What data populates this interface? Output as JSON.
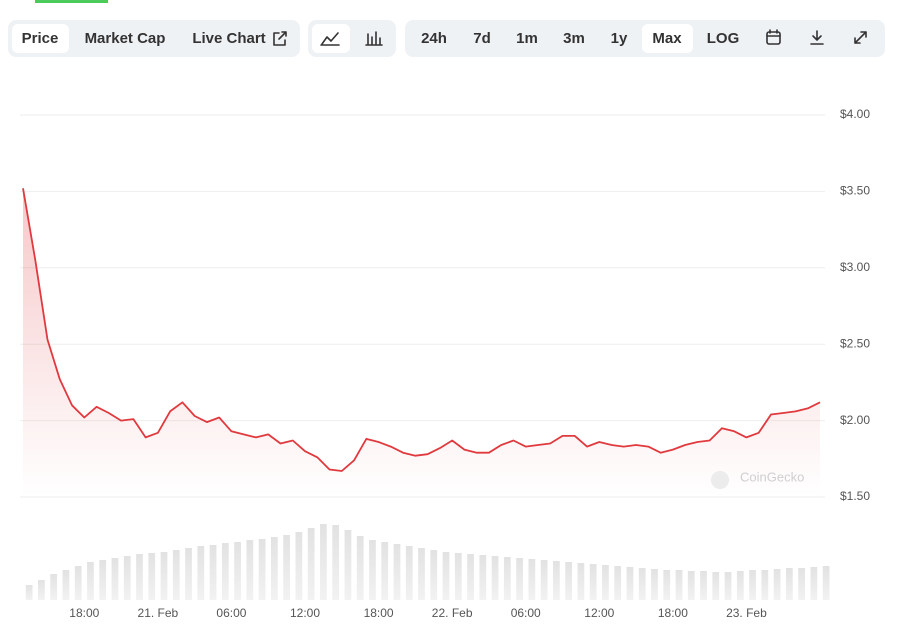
{
  "toolbar": {
    "tabs": [
      "Price",
      "Market Cap",
      "Live Chart"
    ],
    "ranges": [
      "24h",
      "7d",
      "1m",
      "3m",
      "1y",
      "Max"
    ],
    "scale": "LOG"
  },
  "chart_data": {
    "type": "line",
    "categories": [
      null,
      null,
      null,
      null,
      null,
      "18:00",
      null,
      null,
      null,
      null,
      null,
      "21. Feb",
      null,
      null,
      null,
      null,
      null,
      "06:00",
      null,
      null,
      null,
      null,
      null,
      "12:00",
      null,
      null,
      null,
      null,
      null,
      "18:00",
      null,
      null,
      null,
      null,
      null,
      "22. Feb",
      null,
      null,
      null,
      null,
      null,
      "06:00",
      null,
      null,
      null,
      null,
      null,
      "12:00",
      null,
      null,
      null,
      null,
      null,
      "18:00",
      null,
      null,
      null,
      null,
      null,
      "23. Feb",
      null,
      null,
      null,
      null,
      null,
      null
    ],
    "series": [
      {
        "name": "Price",
        "color": "#e0393e",
        "values": [
          3.52,
          3.05,
          2.53,
          2.27,
          2.1,
          2.02,
          2.09,
          2.05,
          2.0,
          2.01,
          1.89,
          1.92,
          2.06,
          2.12,
          2.03,
          1.99,
          2.02,
          1.93,
          1.91,
          1.89,
          1.91,
          1.85,
          1.87,
          1.8,
          1.76,
          1.68,
          1.67,
          1.74,
          1.88,
          1.86,
          1.83,
          1.79,
          1.77,
          1.78,
          1.82,
          1.87,
          1.81,
          1.79,
          1.79,
          1.84,
          1.87,
          1.83,
          1.84,
          1.85,
          1.9,
          1.9,
          1.83,
          1.86,
          1.84,
          1.83,
          1.84,
          1.83,
          1.79,
          1.81,
          1.84,
          1.86,
          1.87,
          1.95,
          1.93,
          1.89,
          1.92,
          2.04,
          2.05,
          2.06,
          2.08,
          2.12
        ]
      },
      {
        "name": "Volume",
        "color": "#e4e4e4",
        "axis": "y2",
        "values": [
          15,
          20,
          26,
          30,
          34,
          38,
          40,
          42,
          44,
          46,
          47,
          48,
          50,
          52,
          54,
          55,
          57,
          58,
          60,
          61,
          63,
          65,
          68,
          72,
          76,
          75,
          70,
          64,
          60,
          58,
          56,
          54,
          52,
          50,
          48,
          47,
          46,
          45,
          44,
          43,
          42,
          41,
          40,
          39,
          38,
          37,
          36,
          35,
          34,
          33,
          32,
          31,
          30,
          30,
          29,
          29,
          28,
          28,
          29,
          30,
          30,
          31,
          32,
          32,
          33,
          34
        ]
      }
    ],
    "ylim": [
      1.5,
      4.0
    ],
    "yticks": [
      {
        "value": 1.5,
        "label": "$1.50"
      },
      {
        "value": 2.0,
        "label": "$2.00"
      },
      {
        "value": 2.5,
        "label": "$2.50"
      },
      {
        "value": 3.0,
        "label": "$3.00"
      },
      {
        "value": 3.5,
        "label": "$3.50"
      },
      {
        "value": 4.0,
        "label": "$4.00"
      }
    ],
    "y2lim": [
      0,
      100
    ],
    "grid": true,
    "watermark": "CoinGecko"
  }
}
